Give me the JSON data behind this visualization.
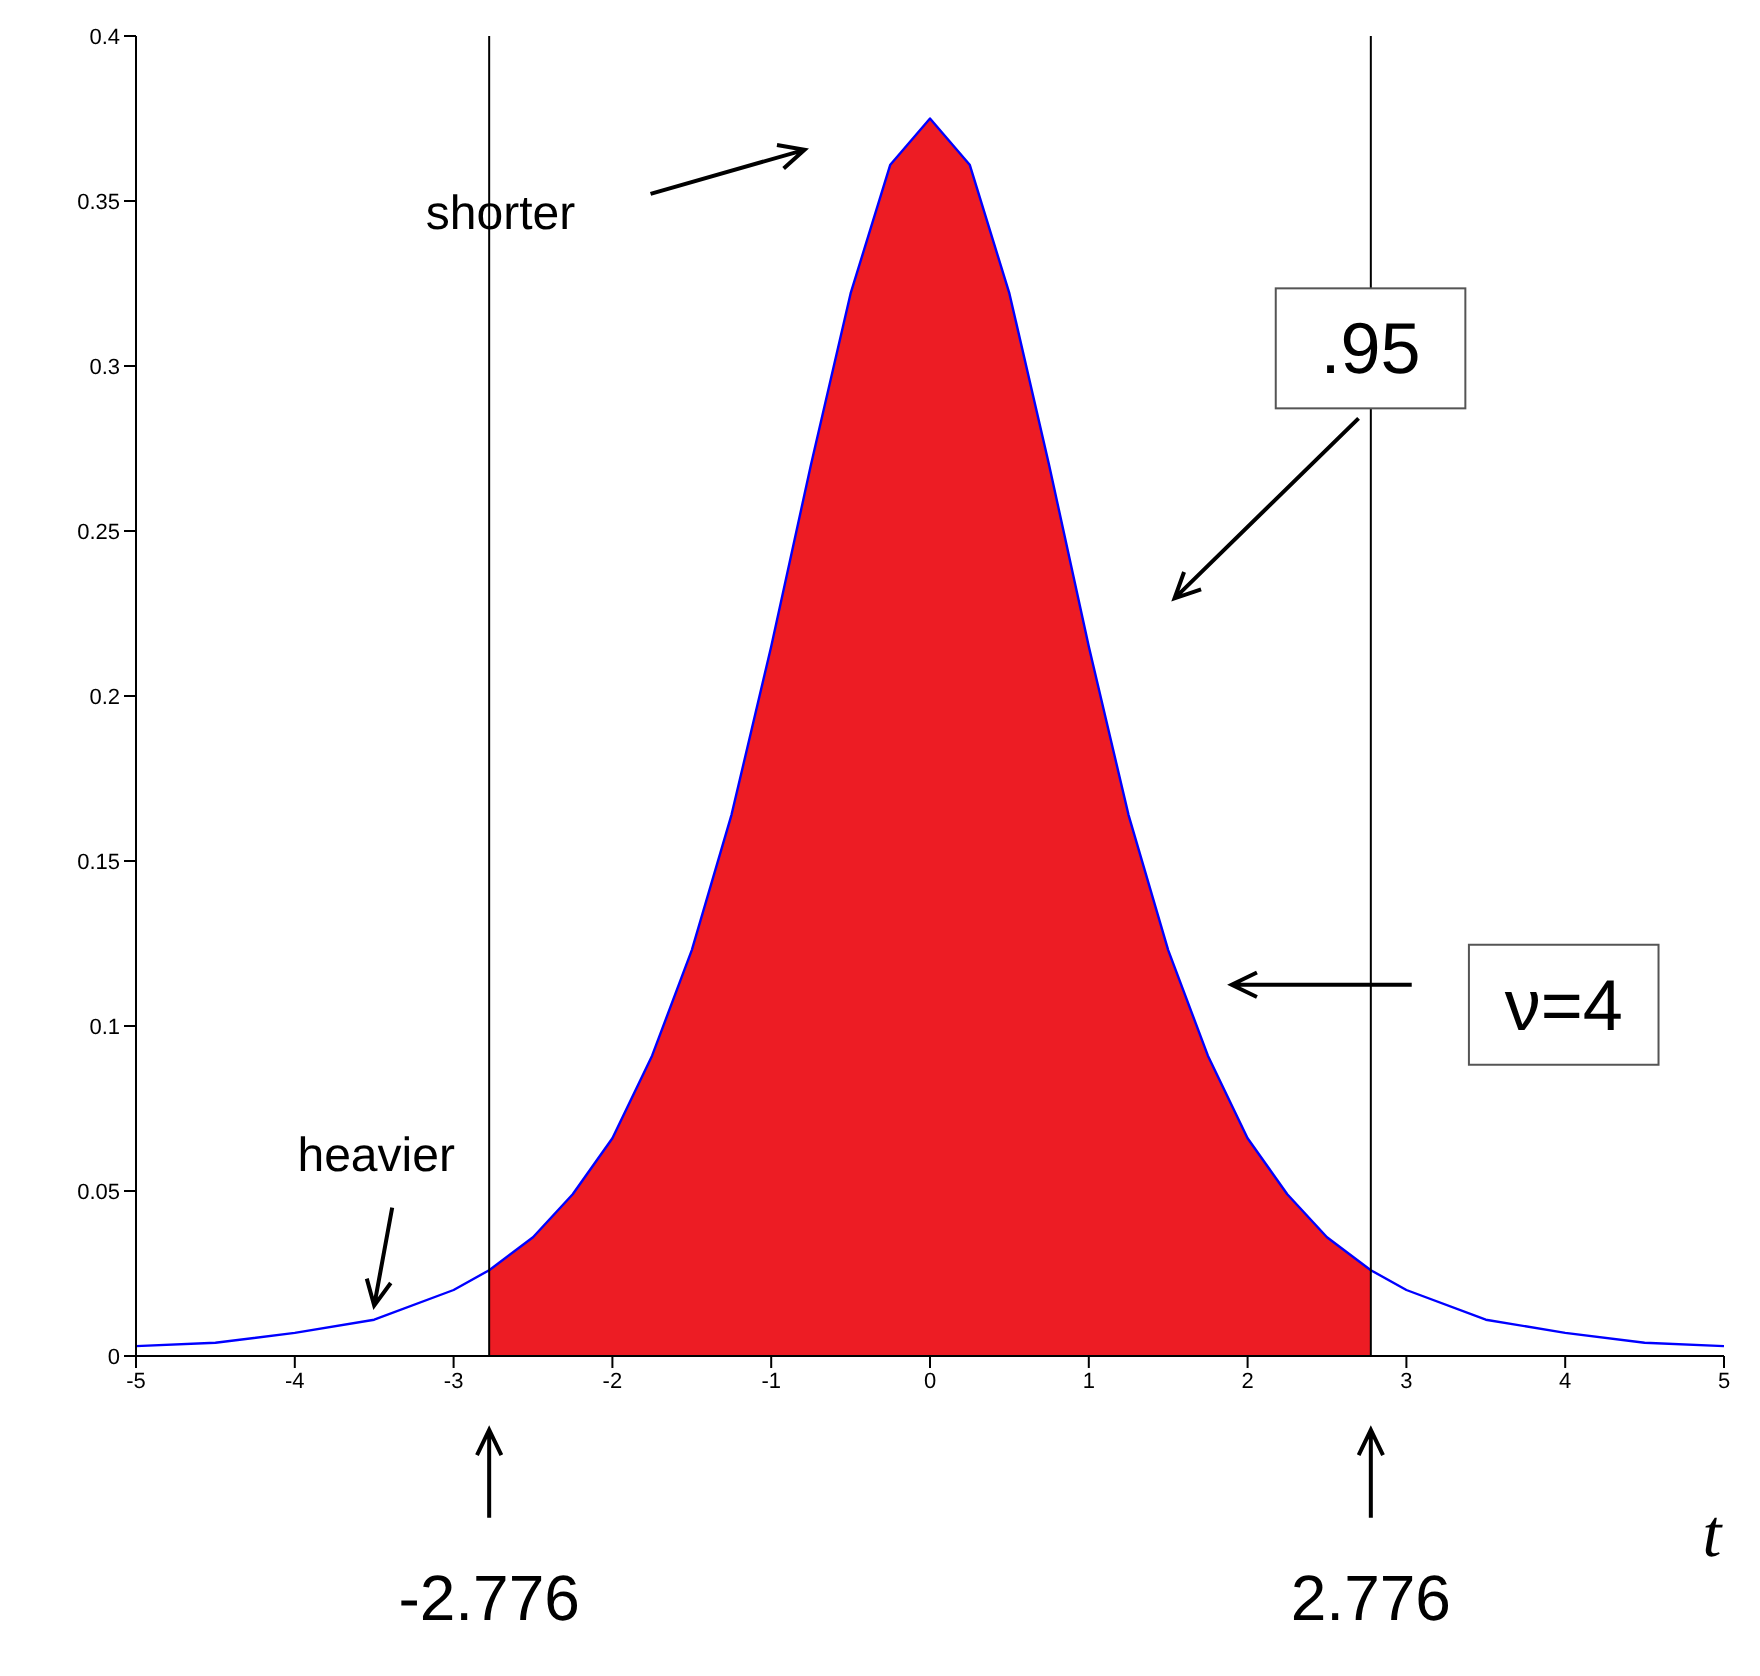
{
  "chart_data": {
    "type": "line",
    "xlabel": "t",
    "xlim": [
      -5,
      5
    ],
    "xticks": [
      -5,
      -4,
      -3,
      -2,
      -1,
      0,
      1,
      2,
      3,
      4,
      5
    ],
    "ylim": [
      0,
      0.4
    ],
    "yticks": [
      0,
      0.05,
      0.1,
      0.15,
      0.2,
      0.25,
      0.3,
      0.35,
      0.4
    ],
    "series": [
      {
        "type": "area",
        "color": "#ed1c24",
        "x": [
          -2.776,
          -2.5,
          -2.25,
          -2,
          -1.75,
          -1.5,
          -1.25,
          -1,
          -0.75,
          -0.5,
          -0.25,
          0,
          0.25,
          0.5,
          0.75,
          1,
          1.25,
          1.5,
          1.75,
          2,
          2.25,
          2.5,
          2.776
        ],
        "values": [
          0.026,
          0.036,
          0.049,
          0.066,
          0.091,
          0.123,
          0.164,
          0.215,
          0.27,
          0.322,
          0.361,
          0.375,
          0.361,
          0.322,
          0.27,
          0.215,
          0.164,
          0.123,
          0.091,
          0.066,
          0.049,
          0.036,
          0.026
        ]
      },
      {
        "color": "#0000ff",
        "x": [
          -5,
          -4.5,
          -4,
          -3.5,
          -3,
          -2.776,
          -2.5,
          -2.25,
          -2,
          -1.75,
          -1.5,
          -1.25,
          -1,
          -0.75,
          -0.5,
          -0.25,
          0,
          0.25,
          0.5,
          0.75,
          1,
          1.25,
          1.5,
          1.75,
          2,
          2.25,
          2.5,
          2.776,
          3,
          3.5,
          4,
          4.5,
          5
        ],
        "values": [
          0.003,
          0.004,
          0.007,
          0.011,
          0.02,
          0.026,
          0.036,
          0.049,
          0.066,
          0.091,
          0.123,
          0.164,
          0.215,
          0.27,
          0.322,
          0.361,
          0.375,
          0.361,
          0.322,
          0.27,
          0.215,
          0.164,
          0.123,
          0.091,
          0.066,
          0.049,
          0.036,
          0.026,
          0.02,
          0.011,
          0.007,
          0.004,
          0.003
        ]
      }
    ],
    "ref_lines": [
      {
        "axis": "x",
        "value": -2.776,
        "color": "#000000"
      },
      {
        "axis": "x",
        "value": 2.776,
        "color": "#000000"
      }
    ],
    "annotations": [
      "shorter",
      ".95",
      "ν=4",
      "heavier",
      "-2.776",
      "2.776"
    ]
  }
}
